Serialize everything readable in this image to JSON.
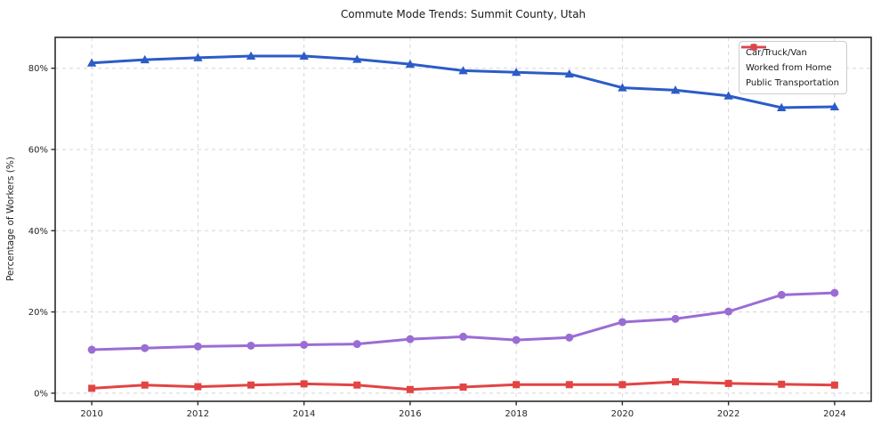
{
  "chart_data": {
    "type": "line",
    "title": "Commute Mode Trends: Summit County, Utah",
    "xlabel": "",
    "ylabel": "Percentage of Workers (%)",
    "x": [
      2010,
      2011,
      2012,
      2013,
      2014,
      2015,
      2016,
      2017,
      2018,
      2019,
      2020,
      2021,
      2022,
      2023,
      2024
    ],
    "series": [
      {
        "name": "Car/Truck/Van",
        "color": "#2b5cc7",
        "marker": "triangle",
        "values": [
          81.3,
          82.1,
          82.6,
          83.0,
          83.0,
          82.2,
          81.0,
          79.4,
          79.0,
          78.6,
          75.2,
          74.6,
          73.2,
          70.3,
          70.5
        ]
      },
      {
        "name": "Worked from Home",
        "color": "#9a6dd4",
        "marker": "circle",
        "values": [
          10.7,
          11.1,
          11.5,
          11.7,
          11.9,
          12.1,
          13.3,
          13.9,
          13.1,
          13.7,
          17.5,
          18.3,
          20.1,
          24.2,
          24.7
        ]
      },
      {
        "name": "Public Transportation",
        "color": "#e24444",
        "marker": "square",
        "values": [
          1.2,
          2.0,
          1.6,
          2.0,
          2.3,
          2.0,
          0.9,
          1.5,
          2.1,
          2.1,
          2.1,
          2.8,
          2.4,
          2.2,
          2.0
        ]
      }
    ],
    "x_tick_values": [
      2010,
      2012,
      2014,
      2016,
      2018,
      2020,
      2022,
      2024
    ],
    "x_tick_labels": [
      "2010",
      "2012",
      "2014",
      "2016",
      "2018",
      "2020",
      "2022",
      "2024"
    ],
    "y_tick_values": [
      0,
      20,
      40,
      60,
      80
    ],
    "y_tick_labels": [
      "0%",
      "20%",
      "40%",
      "60%",
      "80%"
    ],
    "xlim": [
      2009.31,
      2024.69
    ],
    "ylim": [
      -2.0,
      87.6
    ],
    "grid": "dashed",
    "legend_position": "upper right",
    "colors": {
      "grid": "#d5d5d5",
      "spine": "#2b2b2b",
      "tick_text": "#262626",
      "background": "#ffffff"
    }
  }
}
